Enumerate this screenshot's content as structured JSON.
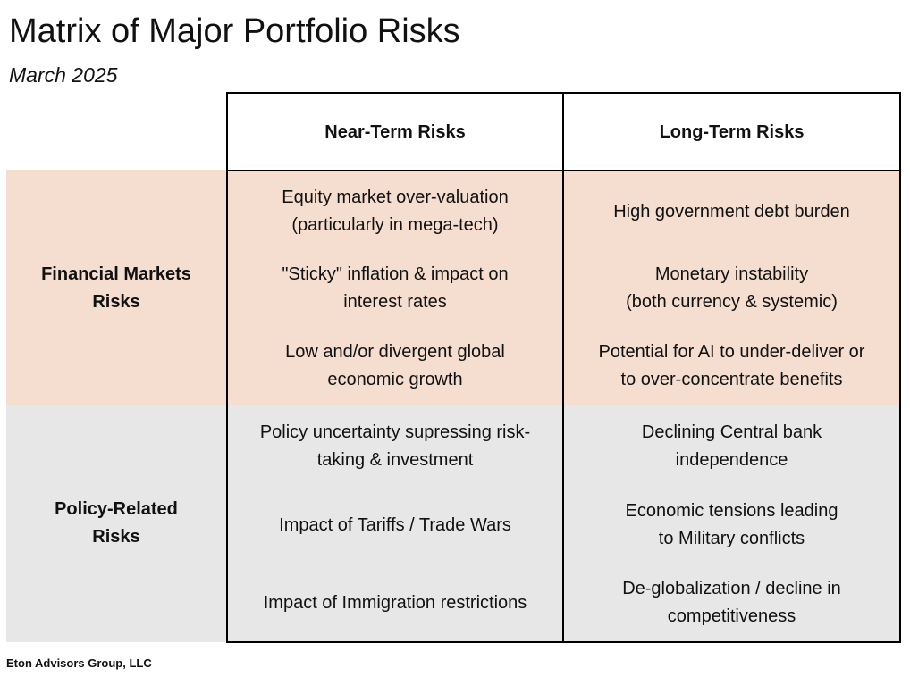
{
  "header": {
    "title": "Matrix of Major Portfolio Risks",
    "subtitle": "March 2025"
  },
  "colors": {
    "financial_band": "#f5ddd0",
    "policy_band": "#e7e7e7",
    "grid": "#000000"
  },
  "columns": {
    "near_term": "Near-Term Risks",
    "long_term": "Long-Term Risks"
  },
  "rows": {
    "financial": {
      "label": "Financial Markets\nRisks",
      "near_term": [
        "Equity market over-valuation\n(particularly in mega-tech)",
        "\"Sticky\" inflation & impact on\ninterest rates",
        "Low and/or divergent global\neconomic growth"
      ],
      "long_term": [
        "High government debt burden",
        "Monetary instability\n(both currency & systemic)",
        "Potential for AI to under-deliver or\nto over-concentrate benefits"
      ]
    },
    "policy": {
      "label": "Policy-Related\nRisks",
      "near_term": [
        "Policy uncertainty supressing risk-\ntaking & investment",
        "Impact of Tariffs / Trade Wars",
        "Impact of Immigration restrictions"
      ],
      "long_term": [
        "Declining Central bank\nindependence",
        "Economic tensions leading\nto Military conflicts",
        "De-globalization / decline in\ncompetitiveness"
      ]
    }
  },
  "footer": {
    "credit": "Eton Advisors Group, LLC"
  }
}
